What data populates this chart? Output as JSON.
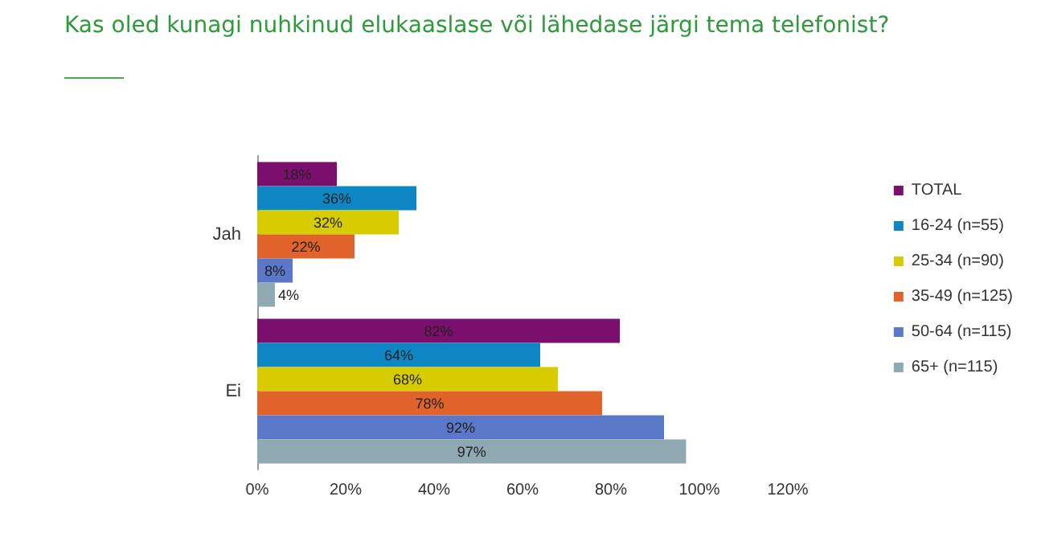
{
  "chart_data": {
    "type": "bar",
    "orientation": "horizontal",
    "title": "Kas oled kunagi nuhkinud elukaaslase või lähedase järgi tema telefonist?",
    "categories": [
      "Jah",
      "Ei"
    ],
    "series": [
      {
        "name": "TOTAL",
        "color": "#7b0f6e",
        "values": [
          18,
          82
        ],
        "value_labels": [
          "18%",
          "82%"
        ]
      },
      {
        "name": "16-24 (n=55)",
        "color": "#0e86c4",
        "values": [
          36,
          64
        ],
        "value_labels": [
          "36%",
          "64%"
        ]
      },
      {
        "name": "25-34 (n=90)",
        "color": "#d6cc00",
        "values": [
          32,
          68
        ],
        "value_labels": [
          "32%",
          "68%"
        ]
      },
      {
        "name": "35-49 (n=125)",
        "color": "#e0632b",
        "values": [
          22,
          78
        ],
        "value_labels": [
          "22%",
          "78%"
        ]
      },
      {
        "name": "50-64 (n=115)",
        "color": "#5a77c8",
        "values": [
          8,
          92
        ],
        "value_labels": [
          "8%",
          "92%"
        ]
      },
      {
        "name": "65+ (n=115)",
        "color": "#8fa9b2",
        "values": [
          4,
          97
        ],
        "value_labels": [
          "4%",
          "97%"
        ]
      }
    ],
    "xlim": [
      0,
      120
    ],
    "xticks": [
      {
        "value": 0,
        "label": "0%"
      },
      {
        "value": 20,
        "label": "20%"
      },
      {
        "value": 40,
        "label": "40%"
      },
      {
        "value": 60,
        "label": "60%"
      },
      {
        "value": 80,
        "label": "80%"
      },
      {
        "value": 100,
        "label": "100%"
      },
      {
        "value": 120,
        "label": "120%"
      }
    ],
    "grid": false,
    "legend": "right"
  }
}
